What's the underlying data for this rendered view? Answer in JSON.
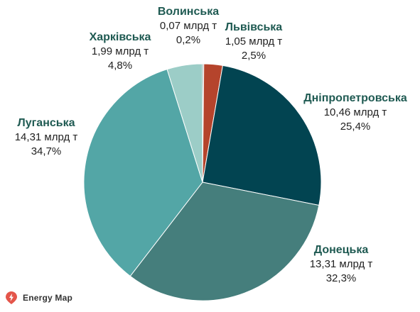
{
  "chart_data": {
    "type": "pie",
    "title": "",
    "slices": [
      {
        "name": "Волинська",
        "value": 0.07,
        "value_label": "0,07 млрд т",
        "percent": 0.2,
        "percent_label": "0,2%",
        "color": "#8a8a8a"
      },
      {
        "name": "Львівська",
        "value": 1.05,
        "value_label": "1,05 млрд т",
        "percent": 2.5,
        "percent_label": "2,5%",
        "color": "#b5442c"
      },
      {
        "name": "Дніпропетровська",
        "value": 10.46,
        "value_label": "10,46 млрд т",
        "percent": 25.4,
        "percent_label": "25,4%",
        "color": "#024451"
      },
      {
        "name": "Донецька",
        "value": 13.31,
        "value_label": "13,31 млрд т",
        "percent": 32.3,
        "percent_label": "32,3%",
        "color": "#457e7c"
      },
      {
        "name": "Луганська",
        "value": 14.31,
        "value_label": "14,31 млрд т",
        "percent": 34.7,
        "percent_label": "34,7%",
        "color": "#53a6a6"
      },
      {
        "name": "Харківська",
        "value": 1.99,
        "value_label": "1,99 млрд т",
        "percent": 4.8,
        "percent_label": "4,8%",
        "color": "#9ccdc7"
      }
    ],
    "label_color": "#1f5a52",
    "start_angle": "top",
    "direction": "clockwise"
  },
  "brand": {
    "text": "Energy Map",
    "logo_color": "#e4554a"
  }
}
